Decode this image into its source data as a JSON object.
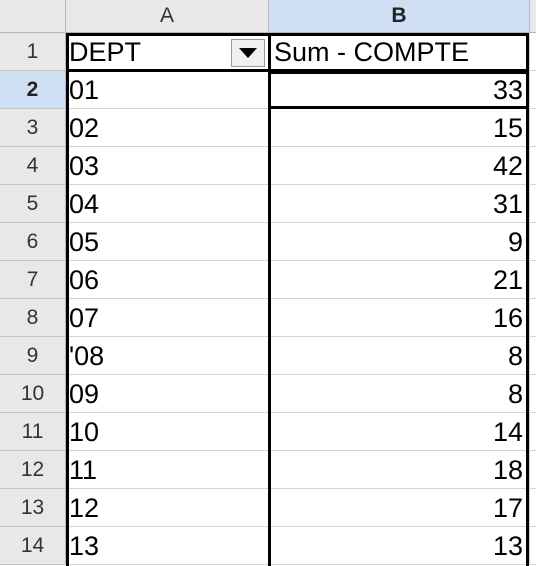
{
  "columns": [
    {
      "letter": "A",
      "active": false
    },
    {
      "letter": "B",
      "active": true
    }
  ],
  "pivot": {
    "header_dept": "DEPT",
    "header_sum": "Sum - COMPTE"
  },
  "rows": [
    {
      "num": "1"
    },
    {
      "num": "2",
      "dept": "01",
      "count": "33"
    },
    {
      "num": "3",
      "dept": "02",
      "count": "15"
    },
    {
      "num": "4",
      "dept": "03",
      "count": "42"
    },
    {
      "num": "5",
      "dept": "04",
      "count": "31"
    },
    {
      "num": "6",
      "dept": "05",
      "count": "9"
    },
    {
      "num": "7",
      "dept": "06",
      "count": "21"
    },
    {
      "num": "8",
      "dept": "07",
      "count": "16"
    },
    {
      "num": "9",
      "dept": "'08",
      "count": "8"
    },
    {
      "num": "10",
      "dept": "09",
      "count": "8"
    },
    {
      "num": "11",
      "dept": "10",
      "count": "14"
    },
    {
      "num": "12",
      "dept": "11",
      "count": "18"
    },
    {
      "num": "13",
      "dept": "12",
      "count": "17"
    },
    {
      "num": "14",
      "dept": "13",
      "count": "13"
    }
  ],
  "active_cell": "B2",
  "icons": {
    "dropdown": "chevron-down-icon"
  }
}
